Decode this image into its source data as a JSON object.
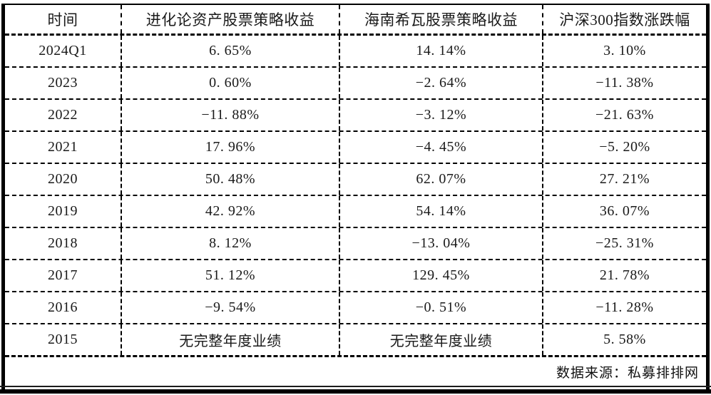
{
  "chart_data": {
    "type": "table",
    "columns": [
      "时间",
      "进化论资产股票策略收益",
      "海南希瓦股票策略收益",
      "沪深300指数涨跌幅"
    ],
    "rows": [
      [
        "2024Q1",
        "6. 65%",
        "14. 14%",
        "3. 10%"
      ],
      [
        "2023",
        "0. 60%",
        "−2. 64%",
        "−11. 38%"
      ],
      [
        "2022",
        "−11. 88%",
        "−3. 12%",
        "−21. 63%"
      ],
      [
        "2021",
        "17. 96%",
        "−4. 45%",
        "−5. 20%"
      ],
      [
        "2020",
        "50. 48%",
        "62. 07%",
        "27. 21%"
      ],
      [
        "2019",
        "42. 92%",
        "54. 14%",
        "36. 07%"
      ],
      [
        "2018",
        "8. 12%",
        "−13. 04%",
        "−25. 31%"
      ],
      [
        "2017",
        "51. 12%",
        "129. 45%",
        "21. 78%"
      ],
      [
        "2016",
        "−9. 54%",
        "−0. 51%",
        "−11. 28%"
      ],
      [
        "2015",
        "无完整年度业绩",
        "无完整年度业绩",
        "5. 58%"
      ]
    ],
    "title": "",
    "legend": [],
    "grid": "dashed inner borders, solid outer side borders, double bottom rule"
  },
  "footer": {
    "source_label": "数据来源：私募排排网"
  },
  "colors": {
    "text": "#1a1a1a",
    "border": "#000000",
    "background": "#ffffff"
  }
}
